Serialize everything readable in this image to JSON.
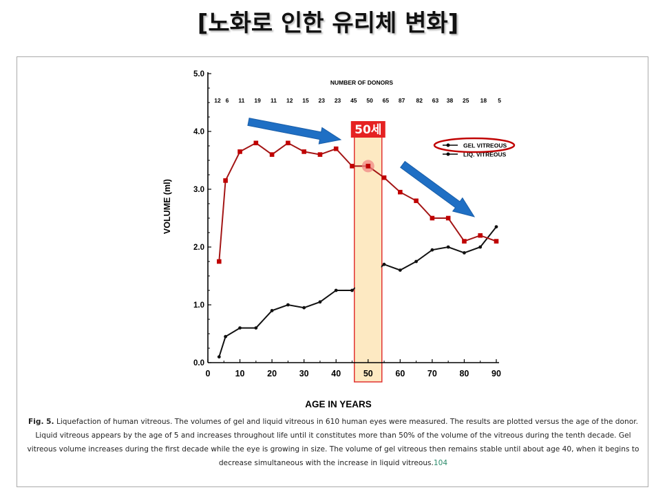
{
  "slide_title": "[노화로 인한 유리체 변화]",
  "annotation": {
    "highlight_label": "50세",
    "highlight_age": 50
  },
  "caption": {
    "fig_label": "Fig. 5.",
    "text": " Liquefaction of human vitreous. The volumes of gel and liquid vitreous in 610 human eyes were measured. The results are plotted versus the age of the donor. Liquid vitreous appears by the age of 5 and increases throughout life until it constitutes more than 50% of the volume of the vitreous during the tenth decade. Gel vitreous volume increases during the first decade while the eye is growing in size. The volume of gel vitreous then remains stable until about age 40, when it begins to decrease simultaneous with the increase in liquid vitreous.",
    "ref": "104"
  },
  "colors": {
    "gel_line": "#a31515",
    "gel_marker": "#c00000",
    "liq_line": "#111111",
    "highlight_fill": "#fde9c2",
    "highlight_border": "#e03030",
    "arrow": "#1f6fc4",
    "ellipse": "#c00000"
  },
  "chart_data": {
    "type": "line",
    "xlabel": "AGE IN YEARS",
    "ylabel": "VOLUME (ml)",
    "xlim": [
      0,
      90
    ],
    "ylim": [
      0.0,
      5.0
    ],
    "x_ticks": [
      "0",
      "10",
      "20",
      "30",
      "40",
      "50",
      "60",
      "70",
      "80",
      "90"
    ],
    "y_ticks": [
      "0.0",
      "1.0",
      "2.0",
      "3.0",
      "4.0",
      "5.0"
    ],
    "donor_title": "NUMBER OF DONORS",
    "donor_counts": [
      "12",
      "6",
      "11",
      "19",
      "11",
      "12",
      "15",
      "23",
      "23",
      "45",
      "50",
      "65",
      "87",
      "82",
      "63",
      "38",
      "25",
      "18",
      "5"
    ],
    "series": [
      {
        "name": "GEL VITREOUS",
        "x": [
          3.5,
          5.5,
          10,
          15,
          20,
          25,
          30,
          35,
          40,
          45,
          50,
          55,
          60,
          65,
          70,
          75,
          80,
          85,
          90
        ],
        "values": [
          1.75,
          3.15,
          3.65,
          3.8,
          3.6,
          3.8,
          3.65,
          3.6,
          3.7,
          3.4,
          3.4,
          3.2,
          2.95,
          2.8,
          2.5,
          2.5,
          2.1,
          2.2,
          2.1
        ]
      },
      {
        "name": "LIQ. VITREOUS",
        "x": [
          3.5,
          5.5,
          10,
          15,
          20,
          25,
          30,
          35,
          40,
          45,
          55,
          60,
          65,
          70,
          75,
          80,
          85,
          90
        ],
        "values": [
          0.1,
          0.45,
          0.6,
          0.6,
          0.9,
          1.0,
          0.95,
          1.05,
          1.25,
          1.25,
          1.7,
          1.6,
          1.75,
          1.95,
          2.0,
          1.9,
          2.0,
          2.35
        ]
      }
    ],
    "legend": "right"
  }
}
